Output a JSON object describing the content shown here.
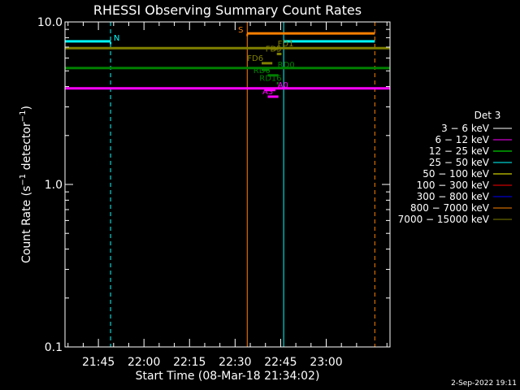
{
  "chart_data": {
    "type": "line",
    "title": "RHESSI Observing Summary Count Rates",
    "xlabel": "Start Time (08-Mar-18 21:34:02)",
    "ylabel_main": "Count Rate (s",
    "ylabel_sup1": "−1",
    "ylabel_mid": " detector",
    "ylabel_sup2": "−1",
    "ylabel_end": ")",
    "y_scale": "log",
    "ylim": [
      0.1,
      10.0
    ],
    "y_ticks": [
      {
        "value": 0.1,
        "label": "0.1"
      },
      {
        "value": 1.0,
        "label": "1.0"
      },
      {
        "value": 10.0,
        "label": "10.0"
      }
    ],
    "xlim_min": [
      0,
      107
    ],
    "x_ticks": [
      {
        "min": 11,
        "label": "21:45"
      },
      {
        "min": 26,
        "label": "22:00"
      },
      {
        "min": 41,
        "label": "22:15"
      },
      {
        "min": 56,
        "label": "22:30"
      },
      {
        "min": 71,
        "label": "22:45"
      },
      {
        "min": 86,
        "label": "23:00"
      }
    ],
    "legend": {
      "title": "Det 3",
      "placement": "right",
      "entries": [
        {
          "label": "3 − 6 keV",
          "color": "#ffffff"
        },
        {
          "label": "6 − 12 keV",
          "color": "#ff00ff"
        },
        {
          "label": "12 − 25 keV",
          "color": "#00ff00"
        },
        {
          "label": "25 − 50 keV",
          "color": "#00ffff"
        },
        {
          "label": "50 − 100 keV",
          "color": "#ffff00"
        },
        {
          "label": "100 − 300 keV",
          "color": "#ff0000"
        },
        {
          "label": "300 − 800 keV",
          "color": "#0000ff"
        },
        {
          "label": "800 − 7000 keV",
          "color": "#ff8000"
        },
        {
          "label": "7000 − 15000 keV",
          "color": "#808000"
        }
      ]
    },
    "series": [
      {
        "name": "6 − 12 keV",
        "color": "#ff00ff",
        "x": [
          0,
          107
        ],
        "y": [
          3.9,
          3.9
        ]
      },
      {
        "name": "12 − 25 keV",
        "color": "#008000",
        "x": [
          0,
          107
        ],
        "y": [
          5.2,
          5.2
        ]
      },
      {
        "name": "7000 − 15000 keV",
        "color": "#808000",
        "x": [
          0,
          107
        ],
        "y": [
          6.9,
          6.9
        ]
      }
    ],
    "segments": [
      {
        "color": "#00ffff",
        "x": [
          0,
          15
        ],
        "y": [
          7.6,
          7.6
        ]
      },
      {
        "color": "#00ffff",
        "x": [
          72,
          102
        ],
        "y": [
          7.6,
          7.6
        ]
      },
      {
        "color": "#ff8000",
        "x": [
          60,
          102
        ],
        "y": [
          8.5,
          8.5
        ]
      }
    ],
    "vlines": [
      {
        "color": "#00ffff",
        "min": 0,
        "dash": false
      },
      {
        "color": "#00ffff",
        "min": 15,
        "dash": true
      },
      {
        "color": "#ff8000",
        "min": 60,
        "dash": false
      },
      {
        "color": "#00ffff",
        "min": 72,
        "dash": false
      },
      {
        "color": "#ff8000",
        "min": 102,
        "dash": true
      }
    ],
    "flags": [
      {
        "label": "N",
        "color": "#00ffff",
        "min": 16,
        "y": 7.6,
        "mark_x": [
          15,
          15
        ]
      },
      {
        "label": "S",
        "color": "#ff8000",
        "min": 57,
        "y": 8.5,
        "mark_x": [
          60,
          60
        ]
      },
      {
        "label": "FD1",
        "color": "#808000",
        "min": 70,
        "y": 7.0,
        "mark_x": [
          68,
          70
        ]
      },
      {
        "label": "FD5",
        "color": "#808000",
        "min": 66,
        "y": 6.5,
        "mark_x": [
          70,
          71
        ]
      },
      {
        "label": "FD6",
        "color": "#808000",
        "min": 60,
        "y": 5.7,
        "mark_x": [
          65,
          68
        ]
      },
      {
        "label": "RD0",
        "color": "#008000",
        "min": 70,
        "y": 5.2,
        "mark_x": [
          65,
          67
        ]
      },
      {
        "label": "RD6",
        "color": "#008000",
        "min": 62,
        "y": 4.8,
        "mark_x": [
          67,
          70
        ]
      },
      {
        "label": "RD16",
        "color": "#008000",
        "min": 64,
        "y": 4.3,
        "mark_x": [
          70,
          70
        ]
      },
      {
        "label": "A0",
        "color": "#ff00ff",
        "min": 70,
        "y": 3.9,
        "mark_x": [
          66,
          69
        ]
      },
      {
        "label": "A3",
        "color": "#ff00ff",
        "min": 65,
        "y": 3.55,
        "mark_x": [
          67,
          70
        ]
      }
    ],
    "footer": "2-Sep-2022 19:11"
  }
}
